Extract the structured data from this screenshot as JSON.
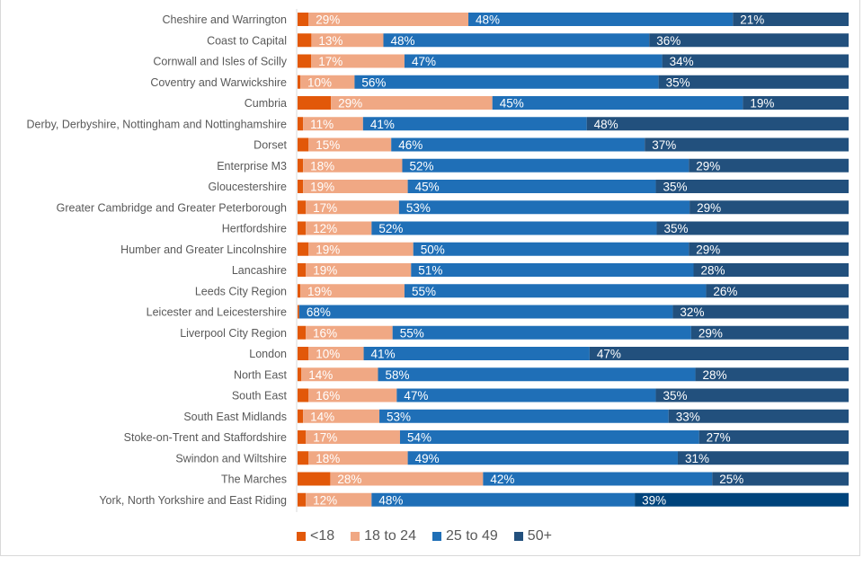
{
  "chart_data": {
    "type": "bar",
    "orientation": "horizontal",
    "stacked": "percent",
    "title": "",
    "xlabel": "",
    "ylabel": "",
    "xlim": [
      0,
      100
    ],
    "grid": false,
    "legend_position": "bottom",
    "categories": [
      "Cheshire and Warrington",
      "Coast to Capital",
      "Cornwall and Isles of Scilly",
      "Coventry and Warwickshire",
      "Cumbria",
      "Derby, Derbyshire, Nottingham and Nottinghamshire",
      "Dorset",
      "Enterprise M3",
      "Gloucestershire",
      "Greater Cambridge and Greater Peterborough",
      "Hertfordshire",
      "Humber and Greater Lincolnshire",
      "Lancashire",
      "Leeds City Region",
      "Leicester and Leicestershire",
      "Liverpool City Region",
      "London",
      "North East",
      "South East",
      "South East Midlands",
      "Stoke-on-Trent and Staffordshire",
      "Swindon and Wiltshire",
      "The Marches",
      "York, North Yorkshire and East Riding"
    ],
    "series": [
      {
        "name": "<18",
        "color": "#e25809",
        "values": [
          2,
          2.5,
          2.5,
          0.5,
          6,
          1,
          2,
          1,
          1,
          1.5,
          1.5,
          2,
          1.5,
          0.5,
          0.3,
          1.5,
          2,
          0.7,
          2,
          1,
          1.5,
          2,
          6,
          1.5
        ],
        "labels": [
          "",
          "",
          "",
          "",
          "",
          "",
          "",
          "",
          "",
          "",
          "",
          "",
          "",
          "",
          "",
          "",
          "",
          "",
          "",
          "",
          "",
          "",
          "",
          ""
        ]
      },
      {
        "name": "18 to 24",
        "color": "#f0a884",
        "values": [
          29,
          13,
          17,
          10,
          29,
          11,
          15,
          18,
          19,
          17,
          12,
          19,
          19,
          19,
          0,
          16,
          10,
          14,
          16,
          14,
          17,
          18,
          28,
          12
        ],
        "labels": [
          "29%",
          "13%",
          "17%",
          "10%",
          "29%",
          "11%",
          "15%",
          "18%",
          "19%",
          "17%",
          "12%",
          "19%",
          "19%",
          "19%",
          "",
          "16%",
          "10%",
          "14%",
          "16%",
          "14%",
          "17%",
          "18%",
          "28%",
          "12%"
        ]
      },
      {
        "name": "25 to 49",
        "color": "#1f6fb7",
        "values": [
          48,
          48,
          47,
          56,
          45,
          41,
          46,
          52,
          45,
          53,
          52,
          50,
          51,
          55,
          68,
          55,
          41,
          58,
          47,
          53,
          54,
          49,
          42,
          48
        ],
        "labels": [
          "48%",
          "48%",
          "47%",
          "56%",
          "45%",
          "41%",
          "46%",
          "52%",
          "45%",
          "53%",
          "52%",
          "50%",
          "51%",
          "55%",
          "68%",
          "55%",
          "41%",
          "58%",
          "47%",
          "53%",
          "54%",
          "49%",
          "42%",
          "48%"
        ]
      },
      {
        "name": "50+",
        "color": "#22507d",
        "values": [
          21,
          36,
          34,
          35,
          19,
          48,
          37,
          29,
          35,
          29,
          35,
          29,
          28,
          26,
          32,
          29,
          47,
          28,
          35,
          33,
          27,
          31,
          25,
          39
        ],
        "labels": [
          "21%",
          "36%",
          "34%",
          "35%",
          "19%",
          "48%",
          "37%",
          "29%",
          "35%",
          "29%",
          "35%",
          "29%",
          "28%",
          "26%",
          "32%",
          "29%",
          "47%",
          "28%",
          "35%",
          "33%",
          "27%",
          "31%",
          "25%",
          "39%"
        ]
      }
    ],
    "highlight_color_last_50plus": "#00447c"
  },
  "legend": [
    {
      "name": "<18",
      "color": "#e25809"
    },
    {
      "name": "18 to 24",
      "color": "#f0a884"
    },
    {
      "name": "25 to 49",
      "color": "#1f6fb7"
    },
    {
      "name": "50+",
      "color": "#22507d"
    }
  ]
}
